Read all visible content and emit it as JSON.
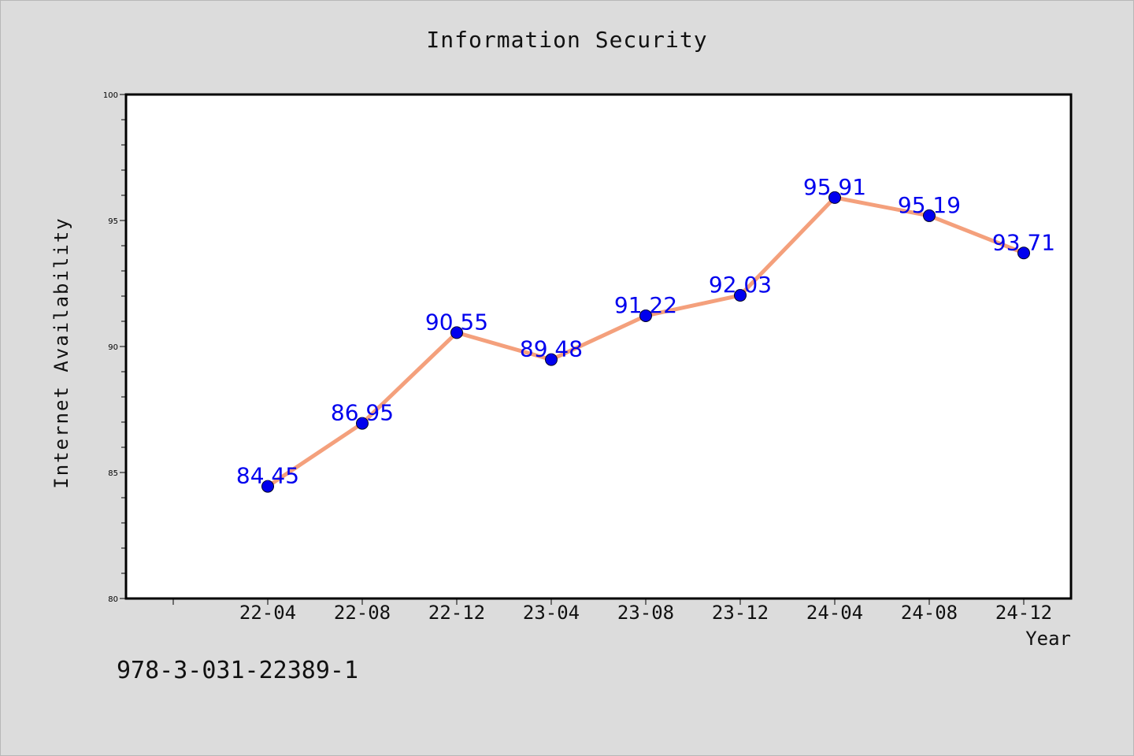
{
  "chart_data": {
    "type": "line",
    "title": "Information Security",
    "xlabel": "Year",
    "ylabel": "Internet Availability",
    "categories": [
      "22-04",
      "22-08",
      "22-12",
      "23-04",
      "23-08",
      "23-12",
      "24-04",
      "24-08",
      "24-12"
    ],
    "series": [
      {
        "values": [
          84.45,
          86.95,
          90.55,
          89.48,
          91.22,
          92.03,
          95.91,
          95.19,
          93.71
        ]
      }
    ],
    "data_labels": [
      "84.45",
      "86.95",
      "90.55",
      "89.48",
      "91.22",
      "92.03",
      "95.91",
      "95.19",
      "93.71"
    ],
    "ylim": [
      80,
      100
    ],
    "yticks": [
      80,
      85,
      90,
      95,
      100
    ],
    "grid": false,
    "line_color": "#f4a07c",
    "marker_color": "#0000ee",
    "label_color": "#0000ee"
  },
  "footnote": "978-3-031-22389-1"
}
